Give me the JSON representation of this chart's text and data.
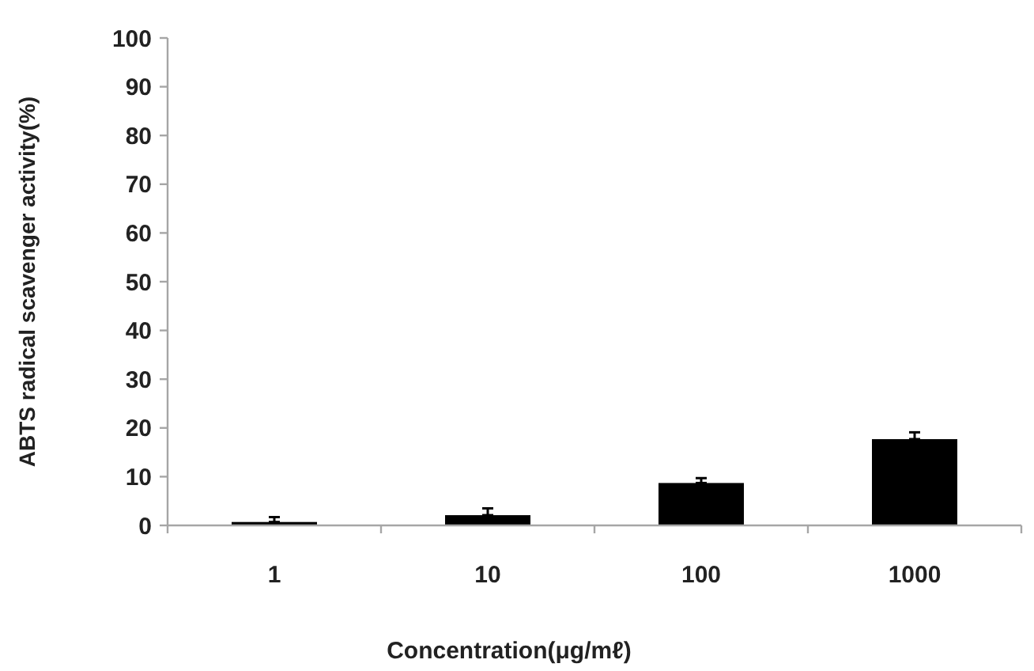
{
  "chart_data": {
    "type": "bar",
    "xlabel": "Concentration(μg/mℓ)",
    "ylabel": "ABTS radical scavenger activity(%)",
    "categories": [
      "1",
      "10",
      "100",
      "1000"
    ],
    "values": [
      0.7,
      2.1,
      8.7,
      17.7
    ],
    "color": "#000000",
    "errors": [
      [
        0.7,
        1.7
      ],
      [
        2.1,
        3.5
      ],
      [
        8.7,
        9.7
      ],
      [
        17.7,
        19.1
      ]
    ],
    "ylim": [
      0,
      100
    ],
    "yticks": [
      0,
      10,
      20,
      30,
      40,
      50,
      60,
      70,
      80,
      90,
      100
    ]
  }
}
